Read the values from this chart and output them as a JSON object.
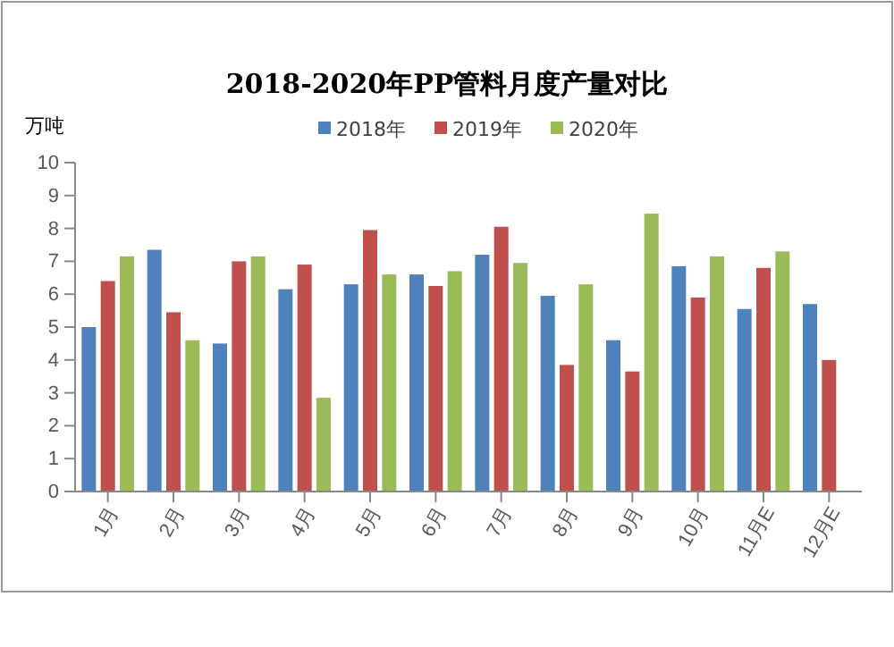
{
  "chart_data": {
    "type": "bar",
    "title": "2018-2020年PP管料月度产量对比",
    "ylabel": "万吨",
    "categories": [
      "1月",
      "2月",
      "3月",
      "4月",
      "5月",
      "6月",
      "7月",
      "8月",
      "9月",
      "10月",
      "11月E",
      "12月E"
    ],
    "series": [
      {
        "name": "2018年",
        "color": "#4f81bd",
        "values": [
          5.0,
          7.35,
          4.5,
          6.15,
          6.3,
          6.6,
          7.2,
          5.95,
          4.6,
          6.85,
          5.55,
          5.7
        ]
      },
      {
        "name": "2019年",
        "color": "#c0504d",
        "values": [
          6.4,
          5.45,
          7.0,
          6.9,
          7.95,
          6.25,
          8.05,
          3.85,
          3.65,
          5.9,
          6.8,
          4.0
        ]
      },
      {
        "name": "2020年",
        "color": "#9bbb59",
        "values": [
          7.15,
          4.6,
          7.15,
          2.85,
          6.6,
          6.7,
          6.95,
          6.3,
          8.45,
          7.15,
          7.3,
          null
        ]
      }
    ],
    "ylim": [
      0,
      10
    ],
    "yticks": [
      0,
      1,
      2,
      3,
      4,
      5,
      6,
      7,
      8,
      9,
      10
    ],
    "grid": false,
    "legend": "top"
  }
}
